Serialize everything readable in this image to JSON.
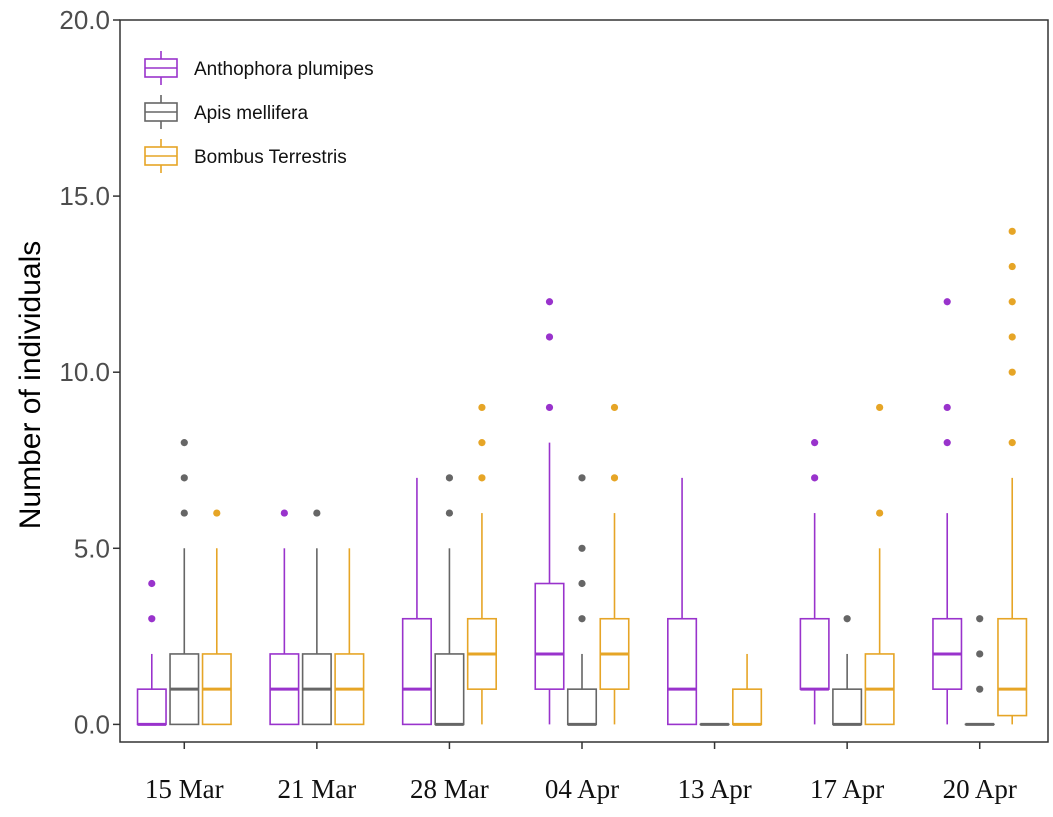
{
  "chart_data": {
    "type": "boxplot",
    "ylabel": "Number of individuals",
    "xlabel": "",
    "ylim": [
      -0.5,
      20
    ],
    "yticks": [
      "0.0",
      "5.0",
      "10.0",
      "15.0",
      "20.0"
    ],
    "ytick_values": [
      0,
      5,
      10,
      15,
      20
    ],
    "categories": [
      "15 Mar",
      "21 Mar",
      "28 Mar",
      "04 Apr",
      "13 Apr",
      "17 Apr",
      "20 Apr"
    ],
    "grid": false,
    "legend_position": "top-left",
    "series": [
      {
        "name": "Anthophora plumipes",
        "color": "#9933cc",
        "boxes": [
          {
            "whisker_low": 0,
            "q1": 0,
            "median": 0,
            "q3": 1,
            "whisker_high": 2,
            "outliers": [
              3,
              4
            ]
          },
          {
            "whisker_low": 0,
            "q1": 0,
            "median": 1,
            "q3": 2,
            "whisker_high": 5,
            "outliers": [
              6
            ]
          },
          {
            "whisker_low": 0,
            "q1": 0,
            "median": 1,
            "q3": 3,
            "whisker_high": 7,
            "outliers": []
          },
          {
            "whisker_low": 0,
            "q1": 1,
            "median": 2,
            "q3": 4,
            "whisker_high": 8,
            "outliers": [
              9,
              11,
              12
            ]
          },
          {
            "whisker_low": 0,
            "q1": 0,
            "median": 1,
            "q3": 3,
            "whisker_high": 7,
            "outliers": []
          },
          {
            "whisker_low": 0,
            "q1": 1,
            "median": 1,
            "q3": 3,
            "whisker_high": 6,
            "outliers": [
              7,
              8
            ]
          },
          {
            "whisker_low": 0,
            "q1": 1,
            "median": 2,
            "q3": 3,
            "whisker_high": 6,
            "outliers": [
              8,
              9,
              12
            ]
          }
        ]
      },
      {
        "name": "Apis mellifera",
        "color": "#666666",
        "boxes": [
          {
            "whisker_low": 0,
            "q1": 0,
            "median": 1,
            "q3": 2,
            "whisker_high": 5,
            "outliers": [
              6,
              7,
              8
            ]
          },
          {
            "whisker_low": 0,
            "q1": 0,
            "median": 1,
            "q3": 2,
            "whisker_high": 5,
            "outliers": [
              6
            ]
          },
          {
            "whisker_low": 0,
            "q1": 0,
            "median": 0,
            "q3": 2,
            "whisker_high": 5,
            "outliers": [
              6,
              7
            ]
          },
          {
            "whisker_low": 0,
            "q1": 0,
            "median": 0,
            "q3": 1,
            "whisker_high": 2,
            "outliers": [
              3,
              4,
              5,
              7
            ]
          },
          {
            "whisker_low": 0,
            "q1": 0,
            "median": 0,
            "q3": 0,
            "whisker_high": 0,
            "outliers": []
          },
          {
            "whisker_low": 0,
            "q1": 0,
            "median": 0,
            "q3": 1,
            "whisker_high": 2,
            "outliers": [
              3
            ]
          },
          {
            "whisker_low": 0,
            "q1": 0,
            "median": 0,
            "q3": 0,
            "whisker_high": 0,
            "outliers": [
              1,
              2,
              3
            ]
          }
        ]
      },
      {
        "name": "Bombus Terrestris",
        "color": "#e6a526",
        "boxes": [
          {
            "whisker_low": 0,
            "q1": 0,
            "median": 1,
            "q3": 2,
            "whisker_high": 5,
            "outliers": [
              6
            ]
          },
          {
            "whisker_low": 0,
            "q1": 0,
            "median": 1,
            "q3": 2,
            "whisker_high": 5,
            "outliers": []
          },
          {
            "whisker_low": 0,
            "q1": 1,
            "median": 2,
            "q3": 3,
            "whisker_high": 6,
            "outliers": [
              7,
              8,
              9
            ]
          },
          {
            "whisker_low": 0,
            "q1": 1,
            "median": 2,
            "q3": 3,
            "whisker_high": 6,
            "outliers": [
              7,
              9
            ]
          },
          {
            "whisker_low": 0,
            "q1": 0,
            "median": 0,
            "q3": 1,
            "whisker_high": 2,
            "outliers": []
          },
          {
            "whisker_low": 0,
            "q1": 0,
            "median": 1,
            "q3": 2,
            "whisker_high": 5,
            "outliers": [
              6,
              9
            ]
          },
          {
            "whisker_low": 0,
            "q1": 0.25,
            "median": 1,
            "q3": 3,
            "whisker_high": 7,
            "outliers": [
              8,
              10,
              11,
              12,
              13,
              14
            ]
          }
        ]
      }
    ]
  }
}
